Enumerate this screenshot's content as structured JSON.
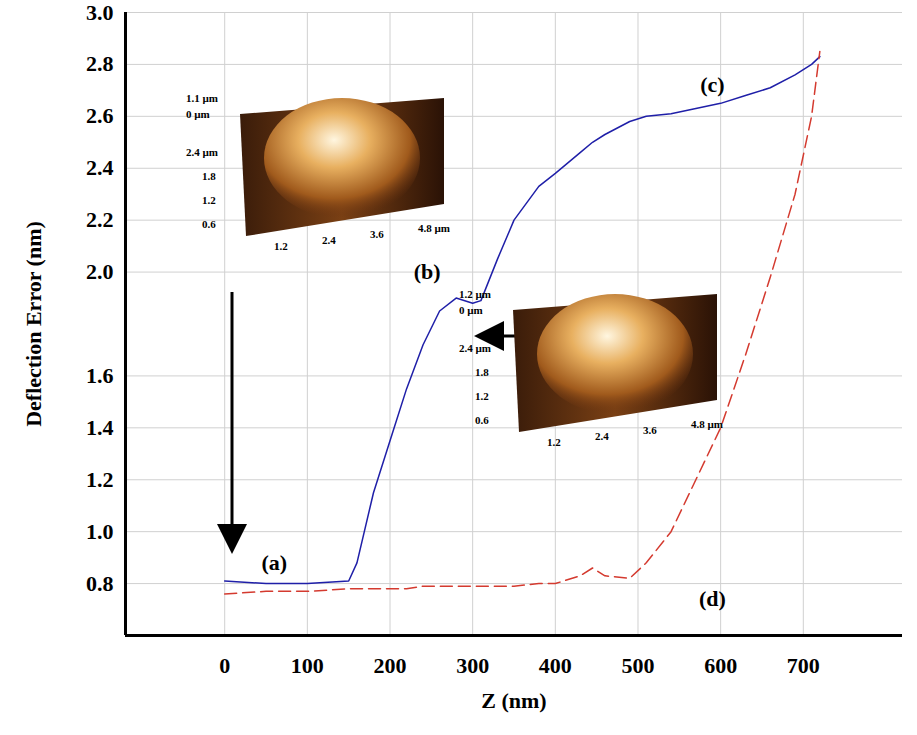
{
  "chart_data": {
    "type": "line",
    "xlabel": "Z (nm)",
    "ylabel": "Deflection Error (nm)",
    "x": [
      0,
      50,
      100,
      150,
      160,
      180,
      200,
      220,
      240,
      260,
      280,
      300,
      310,
      330,
      350,
      380,
      400,
      430,
      445,
      460,
      490,
      510,
      540,
      570,
      600,
      630,
      660,
      690,
      710,
      720
    ],
    "series": [
      {
        "color": "#1f1fa8",
        "line_style": "solid",
        "values": [
          0.81,
          0.8,
          0.8,
          0.81,
          0.88,
          1.15,
          1.35,
          1.55,
          1.72,
          1.85,
          1.9,
          1.88,
          1.89,
          2.05,
          2.2,
          2.33,
          2.38,
          2.46,
          2.5,
          2.53,
          2.58,
          2.6,
          2.61,
          2.63,
          2.65,
          2.68,
          2.71,
          2.76,
          2.8,
          2.83
        ]
      },
      {
        "color": "#d43a2f",
        "line_style": "dashed",
        "values": [
          0.76,
          0.77,
          0.77,
          0.78,
          0.78,
          0.78,
          0.78,
          0.78,
          0.79,
          0.79,
          0.79,
          0.79,
          0.79,
          0.79,
          0.79,
          0.8,
          0.8,
          0.83,
          0.86,
          0.83,
          0.82,
          0.88,
          1.0,
          1.2,
          1.4,
          1.68,
          1.98,
          2.3,
          2.6,
          2.85
        ]
      }
    ],
    "xlim": [
      -120,
      820
    ],
    "xticks": [
      0,
      100,
      200,
      300,
      400,
      500,
      600,
      700
    ],
    "ylim": [
      0.6,
      3.0
    ],
    "yticks": [
      0.8,
      {
        "value": 1.0,
        "label": "1.0"
      },
      1.2,
      1.4,
      1.6,
      {
        "value": 2.0,
        "label": "2.0"
      },
      2.2,
      2.4,
      2.6,
      2.8,
      {
        "value": 3.0,
        "label": "3.0"
      }
    ],
    "grid": true,
    "annotations": [
      {
        "text": "(a)",
        "x": 60,
        "y": 0.88
      },
      {
        "text": "(b)",
        "x": 245,
        "y": 2.0
      },
      {
        "text": "(c)",
        "x": 590,
        "y": 2.72
      },
      {
        "text": "(d)",
        "x": 590,
        "y": 0.74
      }
    ],
    "insets": [
      {
        "z_ticks": [
          "1.1 µm",
          "0 µm"
        ],
        "y_ticks": [
          "2.4 µm",
          "1.8",
          "1.2",
          "0.6"
        ],
        "x_ticks": [
          "1.2",
          "2.4",
          "3.6",
          "4.8 µm"
        ]
      },
      {
        "z_ticks": [
          "1.2 µm",
          "0 µm"
        ],
        "y_ticks": [
          "2.4 µm",
          "1.8",
          "1.2",
          "0.6"
        ],
        "x_ticks": [
          "1.2",
          "2.4",
          "3.6",
          "4.8 µm"
        ]
      }
    ]
  }
}
